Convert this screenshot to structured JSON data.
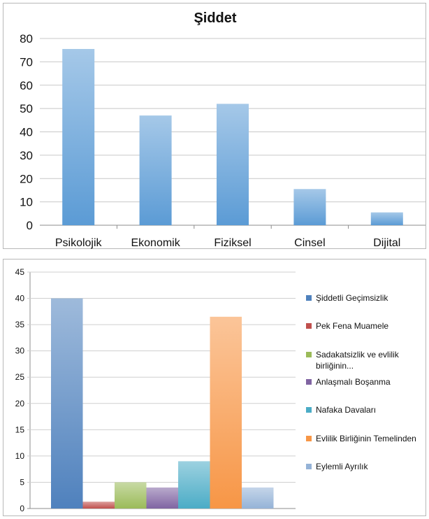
{
  "chart_data": [
    {
      "type": "bar",
      "title": "Şiddet",
      "categories": [
        "Psikolojik",
        "Ekonomik",
        "Fiziksel",
        "Cinsel",
        "Dijital"
      ],
      "values": [
        75.5,
        47,
        52,
        15.5,
        5.5
      ],
      "ylim": [
        0,
        80
      ],
      "yticks": [
        0,
        10,
        20,
        30,
        40,
        50,
        60,
        70,
        80
      ],
      "grid": true,
      "legend": "none",
      "color": "#5b9bd5"
    },
    {
      "type": "bar",
      "ylim": [
        0,
        45
      ],
      "yticks": [
        0,
        5,
        10,
        15,
        20,
        25,
        30,
        35,
        40,
        45
      ],
      "grid": true,
      "legend": "right",
      "series": [
        {
          "name": "Şiddetli Geçimsizlik",
          "values": [
            40
          ],
          "color": "#4f81bd"
        },
        {
          "name": "Pek Fena Muamele",
          "values": [
            1.3
          ],
          "color": "#c0504d"
        },
        {
          "name": "Sadakatsizlik ve evlilik birliğinin...",
          "values": [
            5
          ],
          "color": "#9bbb59"
        },
        {
          "name": "Anlaşmalı Boşanma",
          "values": [
            4
          ],
          "color": "#8064a2"
        },
        {
          "name": "Nafaka Davaları",
          "values": [
            9
          ],
          "color": "#4bacc6"
        },
        {
          "name": "Evlilik Birliğinin Temelinden",
          "values": [
            36.5
          ],
          "color": "#f79646"
        },
        {
          "name": "Eylemli Ayrılık",
          "values": [
            4
          ],
          "color": "#95b3d7"
        }
      ]
    }
  ]
}
